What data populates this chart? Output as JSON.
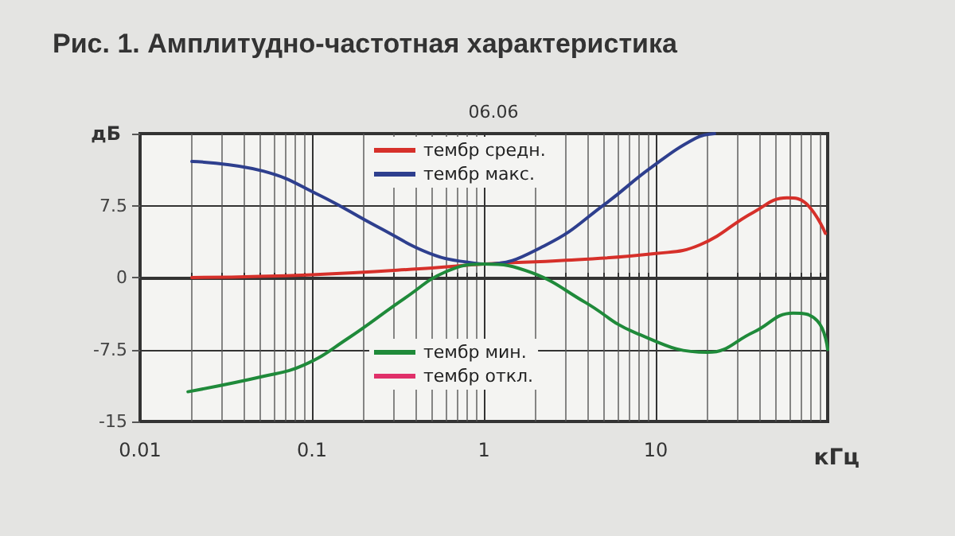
{
  "chart_data": {
    "type": "line",
    "title": "Рис. 1. Амплитудно-частотная характеристика",
    "subtitle": "06.06",
    "xlabel": "кГц",
    "ylabel": "дБ",
    "log": "x",
    "xlim": [
      0.01,
      100
    ],
    "xticks": [
      0.01,
      0.1,
      1,
      10,
      {
        "value": 100,
        "label": null
      }
    ],
    "ylim": [
      -15,
      15
    ],
    "yticks": [
      -15,
      -7.5,
      0,
      7.5,
      {
        "value": 15,
        "label": null
      }
    ],
    "grid": true,
    "legend": "top",
    "marker": "none",
    "line_style": "solid",
    "series": [
      {
        "name": "тембр средн.",
        "color": "#d6302a",
        "x": [
          0.02,
          0.1,
          0.5,
          1,
          3,
          10,
          18,
          37,
          58,
          75,
          97
        ],
        "values": [
          0,
          0.3,
          1,
          1.4,
          1.8,
          2.5,
          3.4,
          6.8,
          8.3,
          7.7,
          4.6
        ]
      },
      {
        "name": "тембр макс.",
        "color": "#2e3f8e",
        "x": [
          0.02,
          0.052,
          0.11,
          0.24,
          0.52,
          0.88,
          1,
          2.3,
          5.1,
          9.3,
          17,
          22
        ],
        "values": [
          12.1,
          11.1,
          8.6,
          5.3,
          2.3,
          1.5,
          1.4,
          3.4,
          7.7,
          11.4,
          14.5,
          15
        ]
      },
      {
        "name": "тембр мин.",
        "color": "#1f8a3a",
        "x": [
          0.019,
          0.052,
          0.09,
          0.16,
          0.35,
          0.6,
          1,
          1.9,
          3.9,
          7.5,
          20,
          37,
          63,
          87,
          100
        ],
        "values": [
          -11.9,
          -10.3,
          -9.1,
          -6.4,
          -2.1,
          0.6,
          1.4,
          0.5,
          -2.6,
          -5.7,
          -7.8,
          -5.7,
          -3.7,
          -4.5,
          -7.5
        ]
      },
      {
        "name": "тембр откл.",
        "color": "#e0306a"
      }
    ]
  }
}
